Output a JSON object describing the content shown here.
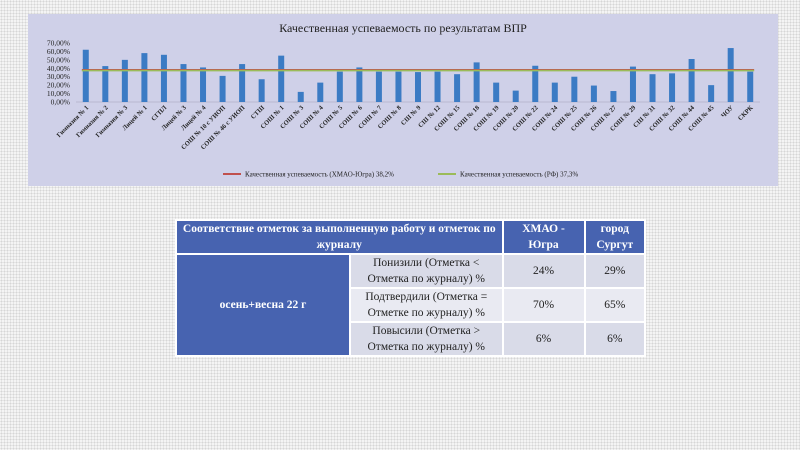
{
  "chart_data": {
    "type": "bar",
    "title": "Качественная успеваемость по результатам ВПР",
    "categories": [
      "Гимназия № 1",
      "Гимназия № 2",
      "Гимназия № 3",
      "Лицей № 1",
      "СГПЛ",
      "Лицей № 3",
      "Лицей № 4",
      "СОШ № 10 с УИОП",
      "СОШ № 46 с УИОП",
      "СТШ",
      "СОШ № 1",
      "СОШ № 3",
      "СОШ № 4",
      "СОШ № 5",
      "СОШ № 6",
      "СОШ № 7",
      "СОШ № 8",
      "СШ № 9",
      "СШ № 12",
      "СОШ № 15",
      "СОШ № 18",
      "СОШ № 19",
      "СОШ № 20",
      "СОШ № 22",
      "СОШ № 24",
      "СОШ № 25",
      "СОШ № 26",
      "СОШ № 27",
      "СОШ № 29",
      "СШ № 31",
      "СОШ № 32",
      "СОШ № 44",
      "СОШ № 45",
      "ЧОУ",
      "СКРК"
    ],
    "values": [
      62,
      42.6,
      50,
      58,
      56,
      45,
      41,
      31,
      45,
      27,
      55,
      12,
      23,
      36,
      41,
      36,
      36,
      35.5,
      36,
      33,
      47,
      23,
      13.5,
      43,
      23,
      30,
      19.5,
      13,
      42,
      33,
      34,
      51,
      20,
      64,
      36
    ],
    "reference_lines": [
      {
        "name": "Качественная успеваемость  (ХМАО-Югра)   38,2%",
        "value": 38.2,
        "color": "#c0504d"
      },
      {
        "name": "Качественная успеваемость  (РФ)   37,3%",
        "value": 37.3,
        "color": "#9bbb59"
      }
    ],
    "yticks": [
      "0,00%",
      "10,00%",
      "20,00%",
      "30,00%",
      "40,00%",
      "50,00%",
      "60,00%",
      "70,00%"
    ],
    "ylim": [
      0,
      70
    ],
    "bar_color": "#3b7bc4",
    "legend_position": "bottom",
    "grid": false
  },
  "table": {
    "header": [
      "Соответствие отметок за выполненную работу и отметок по журналу",
      "ХМАО - Югра",
      "город Сургут"
    ],
    "period": "осень+весна 22 г",
    "rows": [
      {
        "label": "Понизили (Отметка < Отметка по журналу) %",
        "hmao": "24%",
        "surgut": "29%"
      },
      {
        "label": "Подтвердили (Отметка = Отметке по журналу) %",
        "hmao": "70%",
        "surgut": "65%"
      },
      {
        "label": "Повысили (Отметка > Отметка по журналу) %",
        "hmao": "6%",
        "surgut": "6%"
      }
    ],
    "colors": {
      "header": "#4763b0"
    }
  }
}
